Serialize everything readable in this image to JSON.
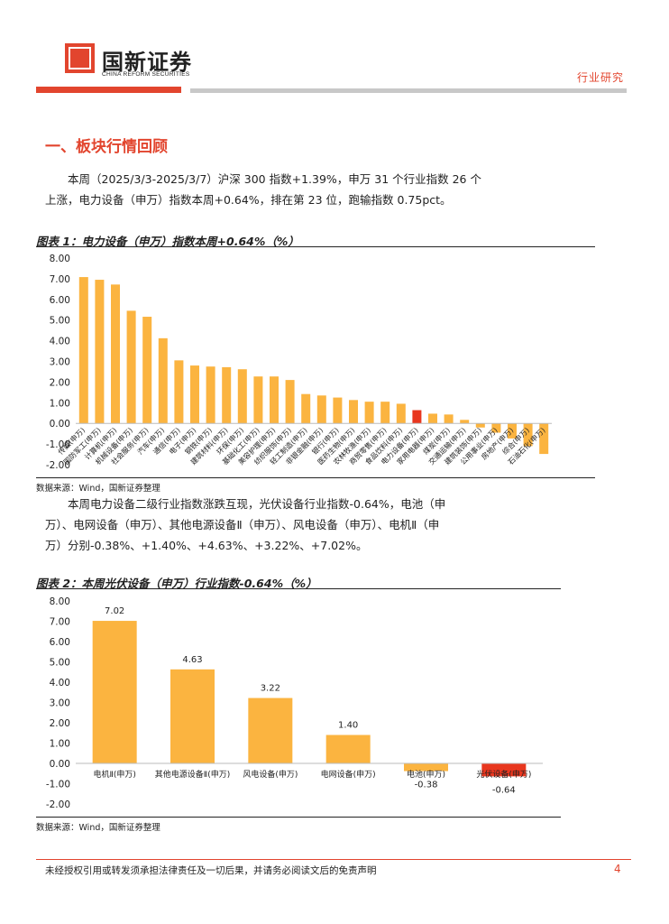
{
  "header": {
    "logo_cn": "国新证券",
    "logo_en": "CHINA REFORM SECURITIES",
    "tag": "行业研究"
  },
  "section_title": "一、板块行情回顾",
  "para1": [
    "本周（2025/3/3-2025/3/7）沪深 300 指数+1.39%，申万 31 个行业指数 26 个",
    "上涨，电力设备（申万）指数本周+0.64%，排在第 23 位，跑输指数 0.75pct。"
  ],
  "para2": [
    "本周电力设备二级行业指数涨跌互现，光伏设备行业指数-0.64%，电池（申",
    "万）、电网设备（申万）、其他电源设备Ⅱ（申万）、风电设备（申万）、电机Ⅱ（申",
    "万）分别-0.38%、+1.40%、+4.63%、+3.22%、+7.02%。"
  ],
  "fig1_title": "图表 1：电力设备（申万）指数本周+0.64%（%）",
  "fig2_title": "图表 2：本周光伏设备（申万）行业指数-0.64%（%）",
  "source_label": "数据来源：Wind，国新证券整理",
  "footer": "未经授权引用或转发须承担法律责任及一切后果，并请务必阅读文后的免责声明",
  "page_number": "4",
  "colors": {
    "bar": "#fbb440",
    "highlight": "#e8371f",
    "brand": "#e2452e"
  },
  "chart_data": [
    {
      "type": "bar",
      "title": "电力设备（申万）指数本周+0.64%（%）",
      "ylim": [
        -2.0,
        8.0
      ],
      "yticks": [
        "-2.00",
        "-1.00",
        "0.00",
        "1.00",
        "2.00",
        "3.00",
        "4.00",
        "5.00",
        "6.00",
        "7.00",
        "8.00"
      ],
      "categories": [
        "传媒(申万)",
        "国防军工(申万)",
        "计算机(申万)",
        "机械设备(申万)",
        "社会服务(申万)",
        "汽车(申万)",
        "通信(申万)",
        "电子(申万)",
        "钢铁(申万)",
        "建筑材料(申万)",
        "环保(申万)",
        "基础化工(申万)",
        "美容护理(申万)",
        "纺织服饰(申万)",
        "轻工制造(申万)",
        "非银金融(申万)",
        "银行(申万)",
        "医药生物(申万)",
        "农林牧渔(申万)",
        "商贸零售(申万)",
        "食品饮料(申万)",
        "电力设备(申万)",
        "家用电器(申万)",
        "煤炭(申万)",
        "交通运输(申万)",
        "建筑装饰(申万)",
        "公用事业(申万)",
        "房地产(申万)",
        "综合(申万)",
        "石油石化(申万)"
      ],
      "values": [
        7.08,
        6.95,
        6.72,
        5.45,
        5.16,
        4.12,
        3.05,
        2.8,
        2.75,
        2.72,
        2.62,
        2.27,
        2.27,
        2.1,
        1.42,
        1.35,
        1.25,
        1.13,
        1.05,
        1.05,
        0.95,
        0.64,
        0.47,
        0.43,
        0.17,
        -0.2,
        -0.45,
        -0.73,
        -1.1,
        -1.48
      ],
      "highlight_index": 21,
      "grid": false
    },
    {
      "type": "bar",
      "title": "本周光伏设备（申万）行业指数-0.64%（%）",
      "ylim": [
        -2.0,
        8.0
      ],
      "yticks": [
        "-2.00",
        "-1.00",
        "0.00",
        "1.00",
        "2.00",
        "3.00",
        "4.00",
        "5.00",
        "6.00",
        "7.00",
        "8.00"
      ],
      "categories": [
        "电机Ⅱ(申万)",
        "其他电源设备Ⅱ(申万)",
        "风电设备(申万)",
        "电网设备(申万)",
        "电池(申万)",
        "光伏设备(申万)"
      ],
      "values": [
        7.02,
        4.63,
        3.22,
        1.4,
        -0.38,
        -0.64
      ],
      "data_labels": [
        "7.02",
        "4.63",
        "3.22",
        "1.40",
        "-0.38",
        "-0.64"
      ],
      "highlight_index": 5,
      "grid": false
    }
  ]
}
